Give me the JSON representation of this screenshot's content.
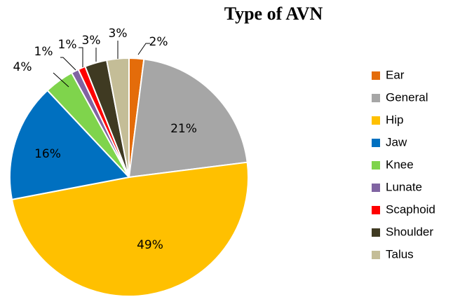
{
  "chart_data": {
    "type": "pie",
    "title": "Type of AVN",
    "legend_position": "right",
    "slices": [
      {
        "name": "Ear",
        "value": 2,
        "label": "2%",
        "color": "#E46C0A"
      },
      {
        "name": "General",
        "value": 21,
        "label": "21%",
        "color": "#A6A6A6"
      },
      {
        "name": "Hip",
        "value": 49,
        "label": "49%",
        "color": "#FFC000"
      },
      {
        "name": "Jaw",
        "value": 16,
        "label": "16%",
        "color": "#0070C0"
      },
      {
        "name": "Knee",
        "value": 4,
        "label": "4%",
        "color": "#7FD44C"
      },
      {
        "name": "Lunate",
        "value": 1,
        "label": "1%",
        "color": "#8064A2"
      },
      {
        "name": "Scaphoid",
        "value": 1,
        "label": "1%",
        "color": "#FF0000"
      },
      {
        "name": "Shoulder",
        "value": 3,
        "label": "3%",
        "color": "#3F3A22"
      },
      {
        "name": "Talus",
        "value": 3,
        "label": "3%",
        "color": "#C4BD97"
      }
    ]
  }
}
